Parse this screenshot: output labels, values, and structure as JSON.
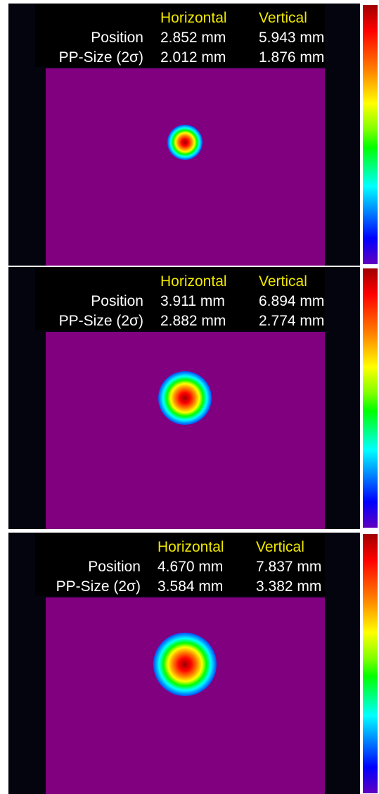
{
  "panels": [
    {
      "headers": [
        "Horizontal",
        "Vertical"
      ],
      "rows": [
        {
          "label": "Position",
          "values": [
            "2.852 mm",
            "5.943 mm"
          ]
        },
        {
          "label": "PP-Size (2σ)",
          "values": [
            "2.012 mm",
            "1.876 mm"
          ]
        }
      ]
    },
    {
      "headers": [
        "Horizontal",
        "Vertical"
      ],
      "rows": [
        {
          "label": "Position",
          "values": [
            "3.911 mm",
            "6.894 mm"
          ]
        },
        {
          "label": "PP-Size (2σ)",
          "values": [
            "2.882 mm",
            "2.774 mm"
          ]
        }
      ]
    },
    {
      "headers": [
        "Horizontal",
        "Vertical"
      ],
      "rows": [
        {
          "label": "Position",
          "values": [
            "4.670 mm",
            "7.837 mm"
          ]
        },
        {
          "label": "PP-Size (2σ)",
          "values": [
            "3.584 mm",
            "3.382 mm"
          ]
        }
      ]
    }
  ]
}
